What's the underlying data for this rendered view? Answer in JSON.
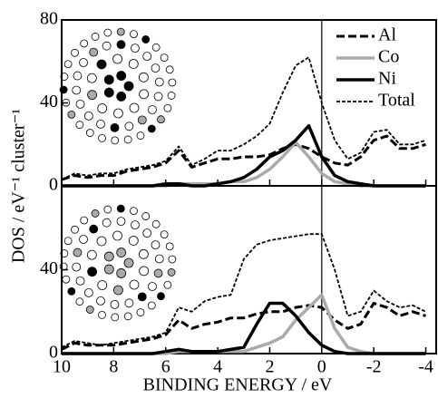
{
  "chart_data": [
    {
      "type": "line",
      "ylabel": "DOS / eV⁻¹  cluster⁻¹",
      "legend": "upper right",
      "x": [
        10,
        9.5,
        9,
        8.5,
        8,
        7.5,
        7,
        6.5,
        6,
        5.5,
        5,
        4.5,
        4,
        3.5,
        3,
        2.5,
        2,
        1.5,
        1,
        0.5,
        0,
        -0.5,
        -1,
        -1.5,
        -2,
        -2.5,
        -3,
        -3.5,
        -4
      ],
      "xlim": [
        10,
        -4.4
      ],
      "ylim": [
        0,
        80
      ],
      "yticks": [
        0,
        40,
        80
      ],
      "xticks": [
        10,
        8,
        6,
        4,
        2,
        0,
        -2,
        -4
      ],
      "series": [
        {
          "name": "Al",
          "color": "#000000",
          "linestyle": "dashed",
          "linewidth": 3,
          "values": [
            3,
            5,
            4,
            5,
            5,
            7,
            8,
            9,
            11,
            17,
            9,
            11,
            13,
            13,
            14,
            14,
            15,
            18,
            20,
            18,
            14,
            11,
            10,
            14,
            22,
            24,
            18,
            18,
            20
          ]
        },
        {
          "name": "Co",
          "color": "#aaaaaa",
          "linestyle": "solid",
          "linewidth": 3.5,
          "values": [
            0,
            0,
            0,
            0,
            0,
            0,
            0,
            0,
            0,
            1,
            1,
            1,
            1,
            2,
            2,
            4,
            8,
            14,
            21,
            14,
            6,
            2,
            1,
            0,
            0,
            0,
            0,
            0,
            0
          ]
        },
        {
          "name": "Ni",
          "color": "#000000",
          "linestyle": "solid",
          "linewidth": 3.5,
          "values": [
            0,
            0,
            0,
            0,
            0,
            0,
            0,
            0,
            1,
            1,
            0,
            0,
            1,
            2,
            4,
            8,
            14,
            17,
            22,
            29,
            14,
            5,
            2,
            1,
            0,
            0,
            0,
            0,
            0
          ]
        },
        {
          "name": "Total",
          "color": "#000000",
          "linestyle": "dotted",
          "linewidth": 1.8,
          "values": [
            3,
            6,
            5,
            6,
            6,
            8,
            9,
            10,
            12,
            19,
            10,
            13,
            17,
            17,
            20,
            24,
            30,
            45,
            58,
            62,
            40,
            22,
            13,
            16,
            26,
            27,
            20,
            20,
            22
          ]
        }
      ]
    },
    {
      "type": "line",
      "xlabel": "BINDING ENERGY / eV",
      "x": [
        10,
        9.5,
        9,
        8.5,
        8,
        7.5,
        7,
        6.5,
        6,
        5.5,
        5,
        4.5,
        4,
        3.5,
        3,
        2.5,
        2,
        1.5,
        1,
        0.5,
        0,
        -0.5,
        -1,
        -1.5,
        -2,
        -2.5,
        -3,
        -3.5,
        -4
      ],
      "xlim": [
        10,
        -4.4
      ],
      "ylim": [
        0,
        80
      ],
      "yticks": [
        0,
        40
      ],
      "xticks": [
        10,
        8,
        6,
        4,
        2,
        0,
        -2,
        -4
      ],
      "series": [
        {
          "name": "Al",
          "color": "#000000",
          "linestyle": "dashed",
          "linewidth": 3,
          "values": [
            2,
            5,
            4,
            4,
            4,
            5,
            6,
            7,
            9,
            16,
            12,
            14,
            15,
            17,
            17,
            19,
            20,
            20,
            22,
            23,
            22,
            16,
            12,
            14,
            24,
            22,
            18,
            20,
            18
          ]
        },
        {
          "name": "Co",
          "color": "#aaaaaa",
          "linestyle": "solid",
          "linewidth": 3.5,
          "values": [
            0,
            0,
            0,
            0,
            0,
            0,
            0,
            0,
            0,
            1,
            1,
            1,
            1,
            1,
            1,
            3,
            5,
            8,
            16,
            22,
            28,
            12,
            3,
            1,
            0,
            0,
            0,
            0,
            0
          ]
        },
        {
          "name": "Ni",
          "color": "#000000",
          "linestyle": "solid",
          "linewidth": 3.5,
          "values": [
            0,
            0,
            0,
            0,
            0,
            0,
            0,
            0,
            1,
            2,
            1,
            1,
            1,
            2,
            3,
            14,
            24,
            24,
            18,
            10,
            4,
            1,
            0,
            0,
            0,
            0,
            0,
            0,
            0
          ]
        },
        {
          "name": "Total",
          "color": "#000000",
          "linestyle": "dotted",
          "linewidth": 1.8,
          "values": [
            3,
            6,
            5,
            4,
            5,
            6,
            7,
            8,
            10,
            22,
            20,
            25,
            27,
            28,
            45,
            52,
            54,
            55,
            56,
            57,
            57,
            40,
            18,
            20,
            30,
            25,
            22,
            23,
            20
          ]
        }
      ]
    }
  ]
}
